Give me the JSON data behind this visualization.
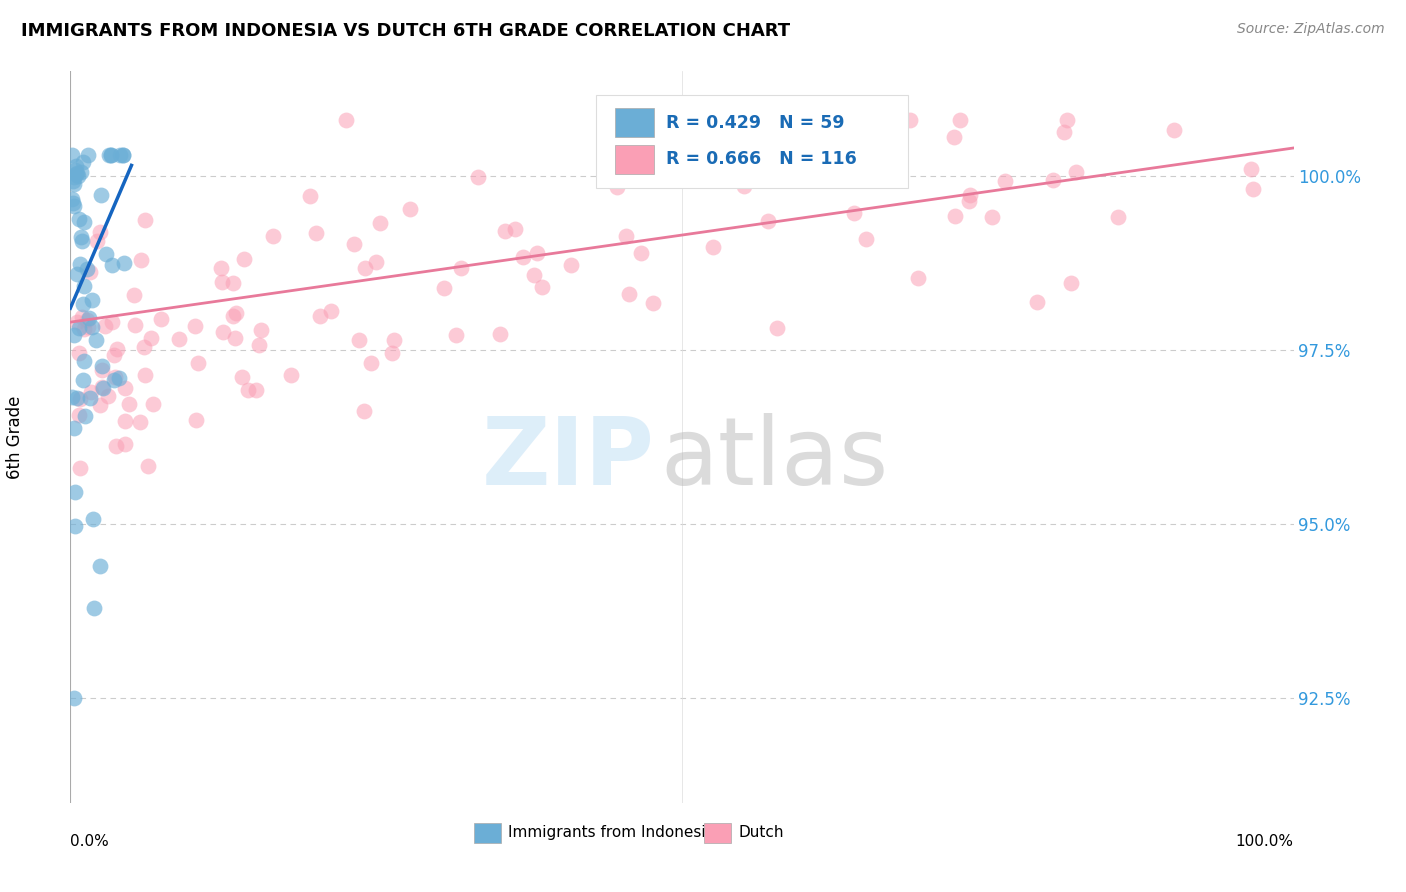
{
  "title": "IMMIGRANTS FROM INDONESIA VS DUTCH 6TH GRADE CORRELATION CHART",
  "source": "Source: ZipAtlas.com",
  "ylabel": "6th Grade",
  "yticks": [
    92.5,
    95.0,
    97.5,
    100.0
  ],
  "ytick_labels": [
    "92.5%",
    "95.0%",
    "97.5%",
    "100.0%"
  ],
  "xmin": 0.0,
  "xmax": 100.0,
  "ymin": 91.0,
  "ymax": 101.5,
  "legend1_label": "Immigrants from Indonesia",
  "legend2_label": "Dutch",
  "r1": 0.429,
  "n1": 59,
  "r2": 0.666,
  "n2": 116,
  "color_blue": "#6baed6",
  "color_pink": "#fa9fb5",
  "watermark_zip": "ZIP",
  "watermark_atlas": "atlas",
  "blue_line_x": [
    0,
    5
  ],
  "blue_line_y": [
    98.1,
    100.15
  ],
  "pink_line_x": [
    0,
    100
  ],
  "pink_line_y": [
    97.9,
    100.4
  ]
}
